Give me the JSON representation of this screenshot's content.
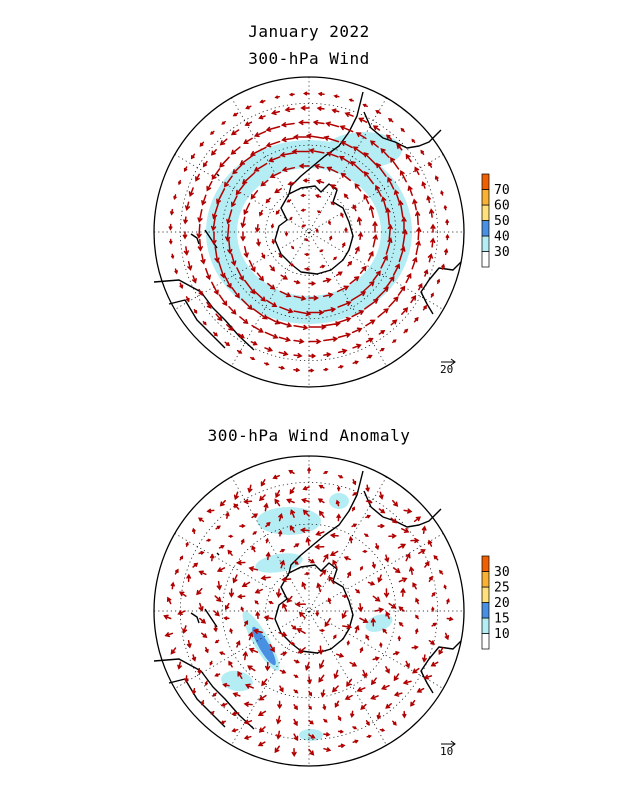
{
  "header": {
    "month": "January 2022",
    "panel_wind_title": "300-hPa Wind",
    "panel_anomaly_title": "300-hPa Wind Anomaly"
  },
  "colors": {
    "vector": "#b00000",
    "coast": "#000000",
    "grid": "#000000"
  },
  "panels": [
    {
      "id": "wind",
      "reference_vector": "20",
      "colorbar": {
        "levels": [
          "30",
          "40",
          "50",
          "60",
          "70"
        ],
        "colors": [
          "#ffffff",
          "#b4eef4",
          "#4a90e2",
          "#ffe07a",
          "#f9b233",
          "#f06000"
        ]
      }
    },
    {
      "id": "anomaly",
      "reference_vector": "10",
      "colorbar": {
        "levels": [
          "10",
          "15",
          "20",
          "25",
          "30"
        ],
        "colors": [
          "#ffffff",
          "#b4eef4",
          "#4a90e2",
          "#ffe07a",
          "#f9b233",
          "#f06000"
        ]
      }
    }
  ]
}
